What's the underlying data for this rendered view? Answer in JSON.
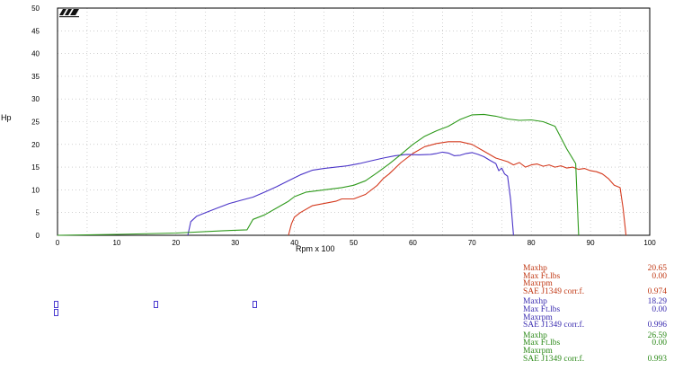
{
  "chart_data": {
    "type": "line",
    "xlabel": "Rpm x 100",
    "ylabel": "Hp",
    "xlim": [
      0,
      100
    ],
    "ylim": [
      0,
      50
    ],
    "xticks": [
      0,
      10,
      20,
      30,
      40,
      50,
      60,
      70,
      80,
      90,
      100
    ],
    "yticks": [
      0,
      5,
      10,
      15,
      20,
      25,
      30,
      35,
      40,
      45,
      50
    ],
    "grid": true,
    "series": [
      {
        "color": "#d43a1e",
        "points": [
          [
            39,
            0
          ],
          [
            39.5,
            2.5
          ],
          [
            40,
            4
          ],
          [
            41,
            5
          ],
          [
            43,
            6.5
          ],
          [
            45,
            7
          ],
          [
            47,
            7.5
          ],
          [
            48,
            8
          ],
          [
            50,
            8
          ],
          [
            52,
            9
          ],
          [
            54,
            11
          ],
          [
            55,
            12.5
          ],
          [
            56,
            13.5
          ],
          [
            58,
            16
          ],
          [
            60,
            18
          ],
          [
            62,
            19.5
          ],
          [
            64,
            20.2
          ],
          [
            66,
            20.6
          ],
          [
            68,
            20.6
          ],
          [
            70,
            20
          ],
          [
            72,
            18.5
          ],
          [
            74,
            17
          ],
          [
            76,
            16.2
          ],
          [
            77,
            15.5
          ],
          [
            78,
            16
          ],
          [
            79,
            15
          ],
          [
            80,
            15.5
          ],
          [
            81,
            15.7
          ],
          [
            82,
            15.2
          ],
          [
            83,
            15.5
          ],
          [
            84,
            15
          ],
          [
            85,
            15.3
          ],
          [
            86,
            14.8
          ],
          [
            87,
            15
          ],
          [
            88,
            14.5
          ],
          [
            89,
            14.7
          ],
          [
            90,
            14.2
          ],
          [
            91,
            14
          ],
          [
            92,
            13.5
          ],
          [
            93,
            12.5
          ],
          [
            94,
            11
          ],
          [
            95,
            10.5
          ],
          [
            95.5,
            6
          ],
          [
            96,
            0
          ]
        ]
      },
      {
        "color": "#4b35c8",
        "points": [
          [
            22,
            0
          ],
          [
            22.5,
            3
          ],
          [
            23.5,
            4.2
          ],
          [
            25,
            5
          ],
          [
            27,
            6
          ],
          [
            29,
            7
          ],
          [
            31,
            7.7
          ],
          [
            33,
            8.4
          ],
          [
            35,
            9.5
          ],
          [
            37,
            10.7
          ],
          [
            39,
            12
          ],
          [
            41,
            13.3
          ],
          [
            43,
            14.3
          ],
          [
            45,
            14.7
          ],
          [
            47,
            15
          ],
          [
            49,
            15.3
          ],
          [
            51,
            15.8
          ],
          [
            53,
            16.4
          ],
          [
            55,
            17
          ],
          [
            57,
            17.5
          ],
          [
            59,
            17.8
          ],
          [
            61,
            17.7
          ],
          [
            63,
            17.8
          ],
          [
            64,
            18
          ],
          [
            65,
            18.3
          ],
          [
            66,
            18.1
          ],
          [
            67,
            17.5
          ],
          [
            68,
            17.6
          ],
          [
            69,
            18
          ],
          [
            70,
            18.2
          ],
          [
            71,
            17.8
          ],
          [
            72,
            17.3
          ],
          [
            73,
            16.5
          ],
          [
            74,
            15.8
          ],
          [
            74.5,
            14.2
          ],
          [
            75,
            14.8
          ],
          [
            75.5,
            13.5
          ],
          [
            76,
            13
          ],
          [
            76.5,
            8
          ],
          [
            77,
            0
          ]
        ]
      },
      {
        "color": "#2f9a1c",
        "points": [
          [
            0,
            0
          ],
          [
            10,
            0.2
          ],
          [
            20,
            0.5
          ],
          [
            28,
            1
          ],
          [
            32,
            1.2
          ],
          [
            33,
            3.5
          ],
          [
            35,
            4.5
          ],
          [
            37,
            6
          ],
          [
            39,
            7.5
          ],
          [
            40,
            8.5
          ],
          [
            42,
            9.5
          ],
          [
            45,
            10
          ],
          [
            48,
            10.5
          ],
          [
            50,
            11
          ],
          [
            52,
            12
          ],
          [
            54,
            13.8
          ],
          [
            56,
            15.7
          ],
          [
            58,
            17.8
          ],
          [
            60,
            20
          ],
          [
            62,
            21.8
          ],
          [
            64,
            23
          ],
          [
            66,
            24
          ],
          [
            68,
            25.5
          ],
          [
            70,
            26.5
          ],
          [
            72,
            26.6
          ],
          [
            74,
            26.2
          ],
          [
            76,
            25.6
          ],
          [
            78,
            25.3
          ],
          [
            80,
            25.4
          ],
          [
            82,
            25
          ],
          [
            84,
            24
          ],
          [
            86,
            19
          ],
          [
            87.5,
            15.8
          ],
          [
            88,
            0
          ]
        ]
      }
    ]
  },
  "legend": {
    "groups": [
      {
        "color": "#c13a16",
        "rows": [
          {
            "label": "Maxhp",
            "value": "20.65"
          },
          {
            "label": "Max Ft.lbs",
            "value": "0.00"
          },
          {
            "label": "Maxrpm",
            "value": ""
          },
          {
            "label": "SAE J1349 corr.f.",
            "value": "0.974"
          }
        ]
      },
      {
        "color": "#3b2db0",
        "rows": [
          {
            "label": "Maxhp",
            "value": "18.29"
          },
          {
            "label": "Max Ft.lbs",
            "value": "0.00"
          },
          {
            "label": "Maxrpm",
            "value": ""
          },
          {
            "label": "SAE J1349 corr.f.",
            "value": "0.996"
          }
        ]
      },
      {
        "color": "#2d8a1a",
        "rows": [
          {
            "label": "Maxhp",
            "value": "26.59"
          },
          {
            "label": "Max Ft.lbs",
            "value": "0.00"
          },
          {
            "label": "Maxrpm",
            "value": ""
          },
          {
            "label": "SAE J1349 corr.f.",
            "value": "0.993"
          }
        ]
      }
    ]
  }
}
